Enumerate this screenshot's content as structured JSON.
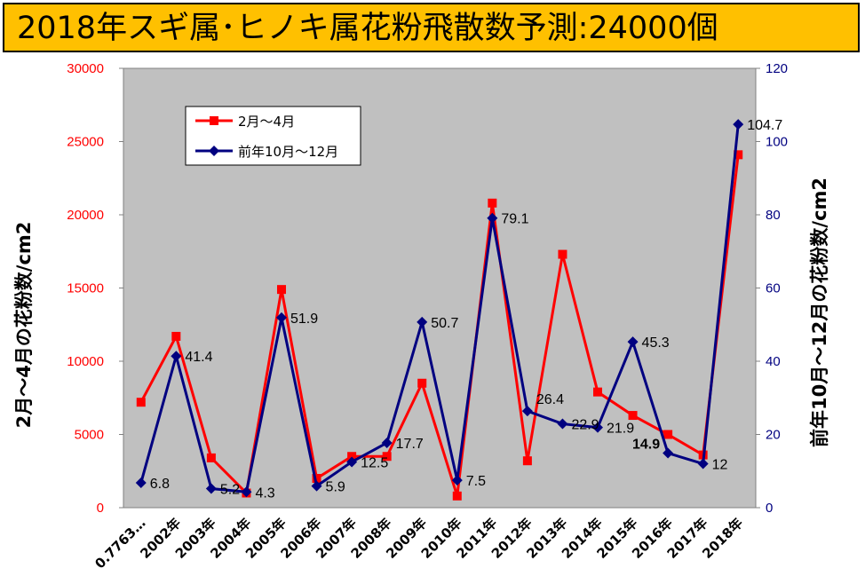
{
  "title": "2018年スギ属･ヒノキ属花粉飛散数予測:24000個",
  "chart_data": {
    "type": "line",
    "categories": [
      "0.7763…",
      "2002年",
      "2003年",
      "2004年",
      "2005年",
      "2006年",
      "2007年",
      "2008年",
      "2009年",
      "2010年",
      "2011年",
      "2012年",
      "2013年",
      "2014年",
      "2015年",
      "2016年",
      "2017年",
      "2018年"
    ],
    "left_axis": {
      "title": "2月～4月の花粉数/cm2",
      "ylim": [
        0,
        30000
      ],
      "ticks": [
        "0",
        "5000",
        "10000",
        "15000",
        "20000",
        "25000",
        "30000"
      ],
      "color": "#FF0000"
    },
    "right_axis": {
      "title": "前年10月～12月の花粉数/cm2",
      "ylim": [
        0,
        120
      ],
      "ticks": [
        "0",
        "20",
        "40",
        "60",
        "80",
        "100",
        "120"
      ],
      "color": "#000080"
    },
    "series": [
      {
        "name": "2月～4月",
        "axis": "left",
        "color": "#FF0000",
        "marker": "square",
        "values": [
          7200,
          11700,
          3400,
          1000,
          14900,
          2000,
          3500,
          3500,
          8500,
          800,
          20800,
          3200,
          17300,
          7900,
          6300,
          5000,
          3600,
          24100
        ]
      },
      {
        "name": "前年10月～12月",
        "axis": "right",
        "color": "#000080",
        "marker": "diamond",
        "values": [
          6.8,
          41.4,
          5.2,
          4.3,
          51.9,
          5.9,
          12.5,
          17.7,
          50.7,
          7.5,
          79.1,
          26.4,
          22.9,
          21.9,
          45.3,
          14.9,
          12,
          104.7
        ],
        "labels": [
          "6.8",
          "41.4",
          "5.2",
          "4.3",
          "51.9",
          "5.9",
          "12.5",
          "17.7",
          "50.7",
          "7.5",
          "79.1",
          "26.4",
          "22.9",
          "21.9",
          "45.3",
          "14.9",
          "12",
          "104.7"
        ]
      }
    ],
    "grid": false,
    "legend": "top-left",
    "plot_background": "#C0C0C0"
  }
}
